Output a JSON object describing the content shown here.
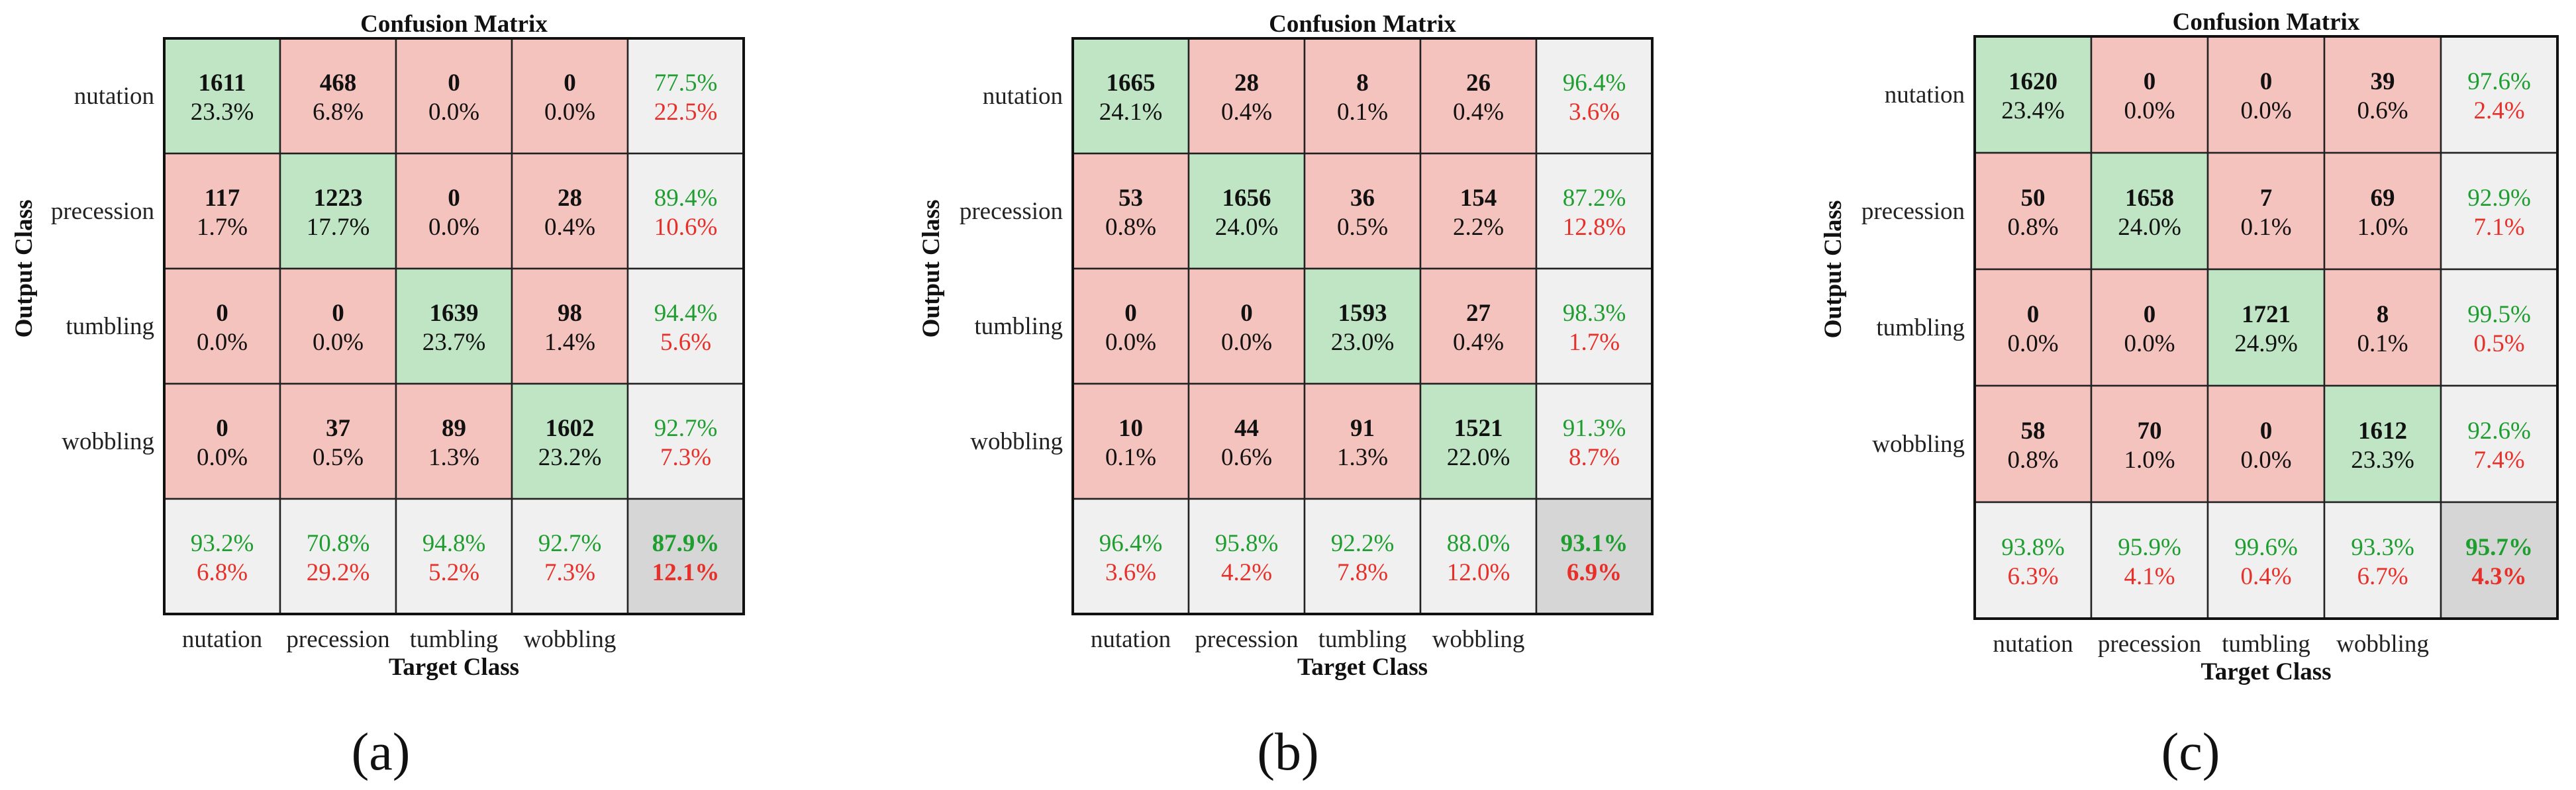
{
  "colors": {
    "correct_cell": "#bfe5c5",
    "error_cell": "#f5c3bd",
    "summary_cell": "#f0f0f0",
    "total_cell": "#d6d6d6",
    "good_text": "#1f9e30",
    "bad_text": "#e8302a"
  },
  "chart_data": [
    {
      "type": "heatmap",
      "panel_label": "(a)",
      "title": "Confusion Matrix",
      "xlabel": "Target Class",
      "ylabel": "Output Class",
      "classes": [
        "nutation",
        "precession",
        "tumbling",
        "wobbling"
      ],
      "matrix": [
        [
          1611,
          468,
          0,
          0
        ],
        [
          117,
          1223,
          0,
          28
        ],
        [
          0,
          0,
          1639,
          98
        ],
        [
          0,
          37,
          89,
          1602
        ]
      ],
      "cell_pct": [
        [
          "23.3%",
          "6.8%",
          "0.0%",
          "0.0%"
        ],
        [
          "1.7%",
          "17.7%",
          "0.0%",
          "0.4%"
        ],
        [
          "0.0%",
          "0.0%",
          "23.7%",
          "1.4%"
        ],
        [
          "0.0%",
          "0.5%",
          "1.3%",
          "23.2%"
        ]
      ],
      "row_summary": [
        [
          "77.5%",
          "22.5%"
        ],
        [
          "89.4%",
          "10.6%"
        ],
        [
          "94.4%",
          "5.6%"
        ],
        [
          "92.7%",
          "7.3%"
        ]
      ],
      "col_summary": [
        [
          "93.2%",
          "6.8%"
        ],
        [
          "70.8%",
          "29.2%"
        ],
        [
          "94.8%",
          "5.2%"
        ],
        [
          "92.7%",
          "7.3%"
        ]
      ],
      "overall": [
        "87.9%",
        "12.1%"
      ]
    },
    {
      "type": "heatmap",
      "panel_label": "(b)",
      "title": "Confusion Matrix",
      "xlabel": "Target Class",
      "ylabel": "Output Class",
      "classes": [
        "nutation",
        "precession",
        "tumbling",
        "wobbling"
      ],
      "matrix": [
        [
          1665,
          28,
          8,
          26
        ],
        [
          53,
          1656,
          36,
          154
        ],
        [
          0,
          0,
          1593,
          27
        ],
        [
          10,
          44,
          91,
          1521
        ]
      ],
      "cell_pct": [
        [
          "24.1%",
          "0.4%",
          "0.1%",
          "0.4%"
        ],
        [
          "0.8%",
          "24.0%",
          "0.5%",
          "2.2%"
        ],
        [
          "0.0%",
          "0.0%",
          "23.0%",
          "0.4%"
        ],
        [
          "0.1%",
          "0.6%",
          "1.3%",
          "22.0%"
        ]
      ],
      "row_summary": [
        [
          "96.4%",
          "3.6%"
        ],
        [
          "87.2%",
          "12.8%"
        ],
        [
          "98.3%",
          "1.7%"
        ],
        [
          "91.3%",
          "8.7%"
        ]
      ],
      "col_summary": [
        [
          "96.4%",
          "3.6%"
        ],
        [
          "95.8%",
          "4.2%"
        ],
        [
          "92.2%",
          "7.8%"
        ],
        [
          "88.0%",
          "12.0%"
        ]
      ],
      "overall": [
        "93.1%",
        "6.9%"
      ]
    },
    {
      "type": "heatmap",
      "panel_label": "(c)",
      "title": "Confusion Matrix",
      "xlabel": "Target Class",
      "ylabel": "Output Class",
      "classes": [
        "nutation",
        "precession",
        "tumbling",
        "wobbling"
      ],
      "matrix": [
        [
          1620,
          0,
          0,
          39
        ],
        [
          50,
          1658,
          7,
          69
        ],
        [
          0,
          0,
          1721,
          8
        ],
        [
          58,
          70,
          0,
          1612
        ]
      ],
      "cell_pct": [
        [
          "23.4%",
          "0.0%",
          "0.0%",
          "0.6%"
        ],
        [
          "0.8%",
          "24.0%",
          "0.1%",
          "1.0%"
        ],
        [
          "0.0%",
          "0.0%",
          "24.9%",
          "0.1%"
        ],
        [
          "0.8%",
          "1.0%",
          "0.0%",
          "23.3%"
        ]
      ],
      "row_summary": [
        [
          "97.6%",
          "2.4%"
        ],
        [
          "92.9%",
          "7.1%"
        ],
        [
          "99.5%",
          "0.5%"
        ],
        [
          "92.6%",
          "7.4%"
        ]
      ],
      "col_summary": [
        [
          "93.8%",
          "6.3%"
        ],
        [
          "95.9%",
          "4.1%"
        ],
        [
          "99.6%",
          "0.4%"
        ],
        [
          "93.3%",
          "6.7%"
        ]
      ],
      "overall": [
        "95.7%",
        "4.3%"
      ]
    }
  ]
}
